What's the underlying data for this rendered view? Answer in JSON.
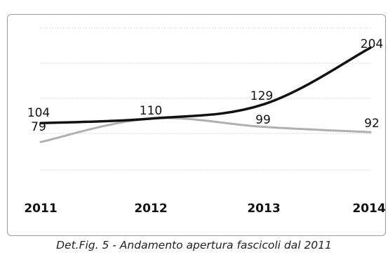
{
  "chart_data": {
    "type": "line",
    "categories": [
      "2011",
      "2012",
      "2013",
      "2014"
    ],
    "series": [
      {
        "values": [
          104,
          110,
          129,
          204
        ],
        "color": "#111111"
      },
      {
        "values": [
          79,
          110,
          99,
          92
        ],
        "color": "#b0b0b0"
      }
    ],
    "ylim": [
      40,
      230
    ],
    "grid": "horizontal",
    "legend": "none"
  },
  "caption": "Det.Fig. 5 - Andamento apertura fascicoli dal 2011"
}
